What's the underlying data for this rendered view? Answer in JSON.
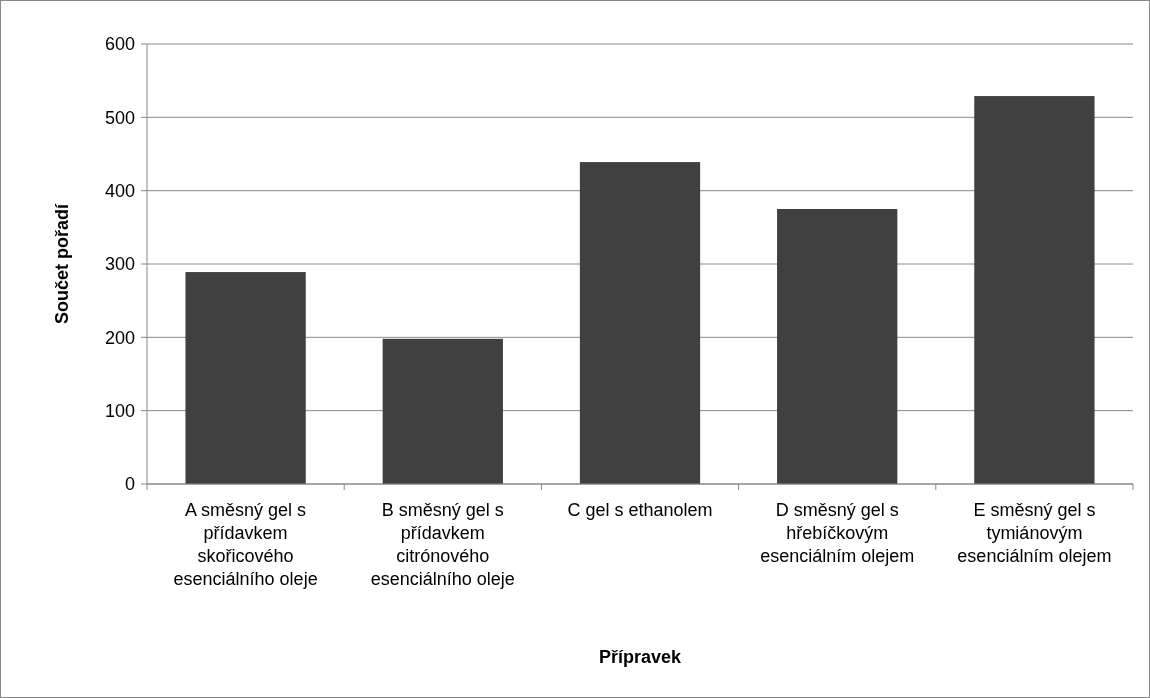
{
  "chart_data": {
    "type": "bar",
    "xlabel": "Přípravek",
    "ylabel": "Součet pořadí",
    "categories": [
      "A směsný gel s přídavkem skořicového esenciálního oleje",
      "B směsný gel s přídavkem citrónového esenciálního oleje",
      "C gel s ethanolem",
      "D směsný gel s hřebíčkovým esenciálním olejem",
      "E směsný gel s tymiánovým esenciálním olejem"
    ],
    "values": [
      289,
      198,
      439,
      375,
      529
    ],
    "color": "#404040",
    "ylim": [
      0,
      600
    ],
    "yticks": [
      0,
      100,
      200,
      300,
      400,
      500,
      600
    ],
    "grid": "y"
  }
}
